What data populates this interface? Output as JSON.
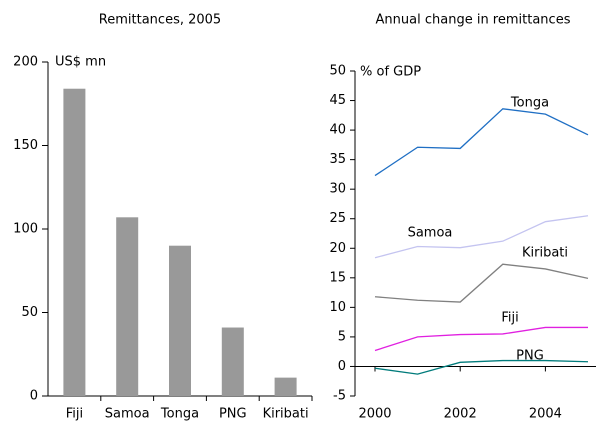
{
  "chart_data": [
    {
      "type": "bar",
      "title": "Remittances, 2005",
      "ylabel": "US$ mn",
      "categories": [
        "Fiji",
        "Samoa",
        "Tonga",
        "PNG",
        "Kiribati"
      ],
      "values": [
        184,
        107,
        90,
        41,
        11
      ],
      "color": "#999999",
      "ylim": [
        0,
        200
      ],
      "yticks": [
        0,
        50,
        100,
        150,
        200
      ]
    },
    {
      "type": "line",
      "title": "Annual change in remittances",
      "ylabel": "% of GDP",
      "x": [
        2000,
        2001,
        2002,
        2003,
        2004,
        2005
      ],
      "series": [
        {
          "name": "Tonga",
          "color": "#1f6fc4",
          "values": [
            32.3,
            37.1,
            36.9,
            43.6,
            42.7,
            39.2
          ]
        },
        {
          "name": "Samoa",
          "color": "#c4c4f0",
          "values": [
            18.4,
            20.3,
            20.1,
            21.2,
            24.5,
            25.5
          ]
        },
        {
          "name": "Kiribati",
          "color": "#808080",
          "values": [
            11.8,
            11.2,
            10.9,
            17.3,
            16.5,
            14.9
          ]
        },
        {
          "name": "Fiji",
          "color": "#e020e0",
          "values": [
            2.7,
            5.0,
            5.4,
            5.5,
            6.6,
            6.6
          ]
        },
        {
          "name": "PNG",
          "color": "#007b7b",
          "values": [
            -0.3,
            -1.3,
            0.7,
            1.0,
            1.0,
            0.8
          ]
        }
      ],
      "xlim": [
        2000,
        2005
      ],
      "xticks": [
        2000,
        2002,
        2004
      ],
      "ylim": [
        -5,
        50
      ],
      "yticks": [
        -5,
        0,
        5,
        10,
        15,
        20,
        25,
        30,
        35,
        40,
        45,
        50
      ]
    }
  ]
}
